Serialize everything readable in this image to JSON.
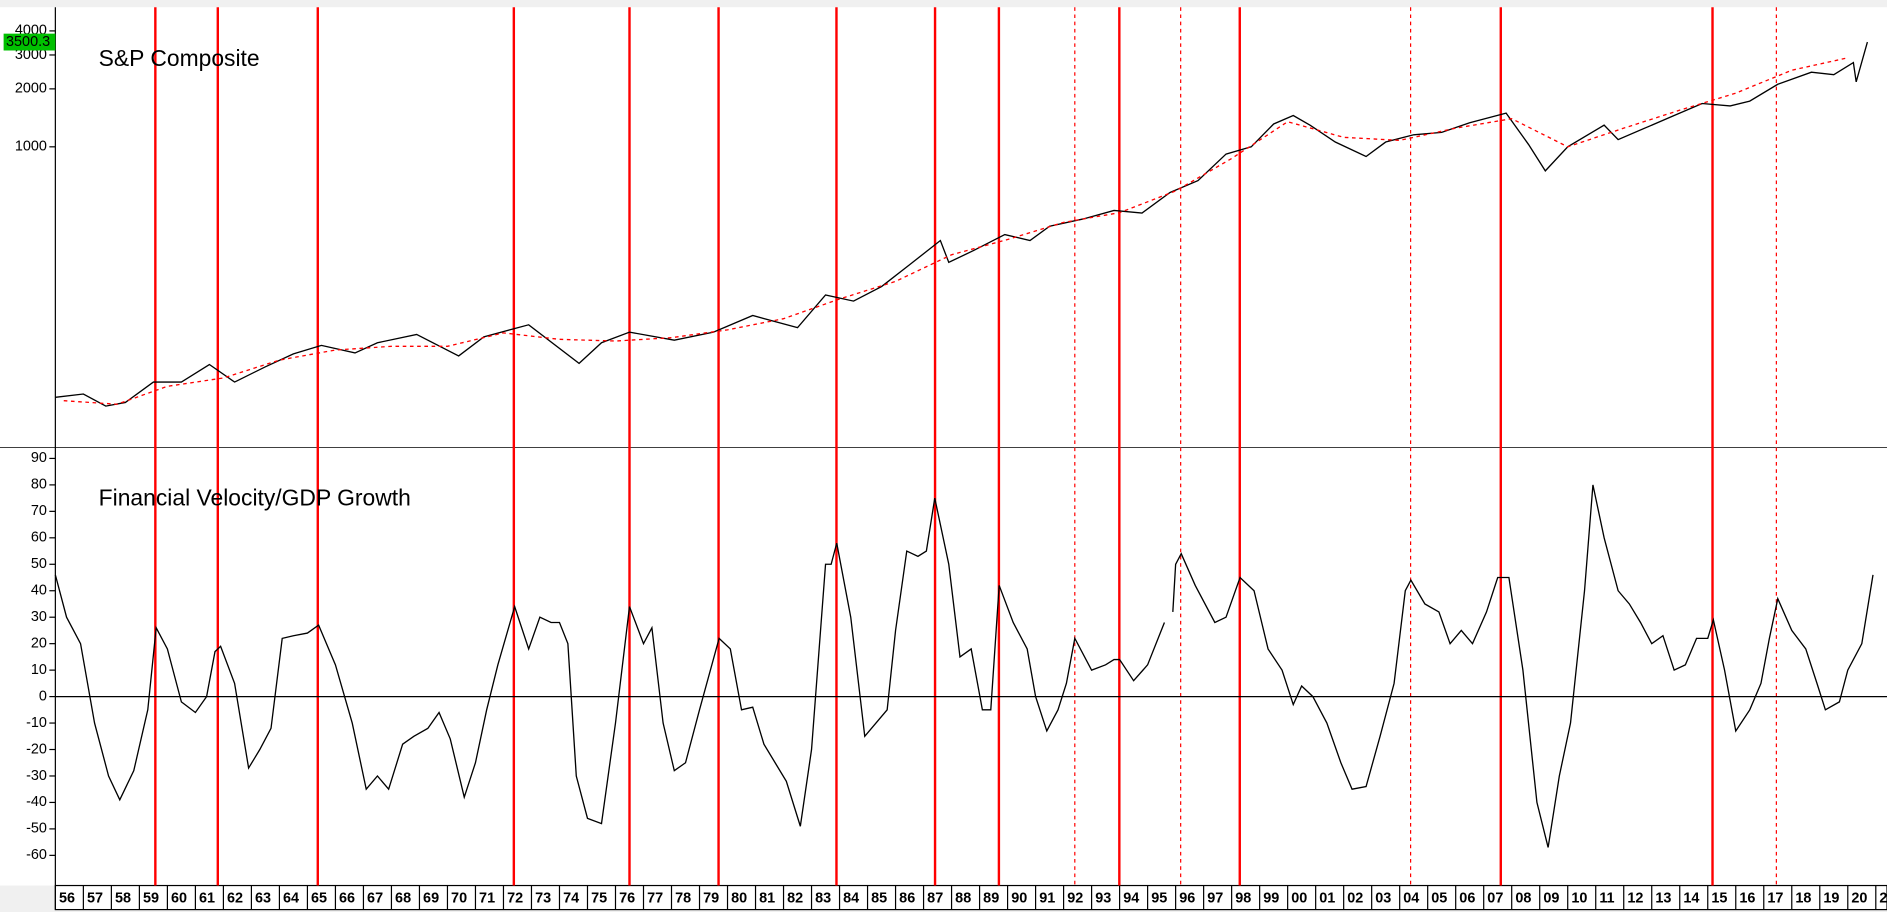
{
  "chart_data": [
    {
      "type": "line",
      "title": "S&P Composite",
      "log_scale": true,
      "last_value": 3500.3,
      "last_value_color": "#00c000",
      "xlim": [
        1956,
        2021.4
      ],
      "ylim": [
        27.4,
        5160
      ],
      "yticks": [
        1000,
        2000,
        3000,
        4000
      ],
      "vlines_color": "#ff0000",
      "vlines": [
        {
          "x": 1959.57,
          "dashed": false
        },
        {
          "x": 1961.8,
          "dashed": false
        },
        {
          "x": 1965.37,
          "dashed": false
        },
        {
          "x": 1972.37,
          "dashed": false
        },
        {
          "x": 1976.5,
          "dashed": false
        },
        {
          "x": 1979.68,
          "dashed": false
        },
        {
          "x": 1983.89,
          "dashed": false
        },
        {
          "x": 1987.41,
          "dashed": false
        },
        {
          "x": 1989.69,
          "dashed": false
        },
        {
          "x": 1992.4,
          "dashed": true
        },
        {
          "x": 1993.99,
          "dashed": false
        },
        {
          "x": 1996.18,
          "dashed": true
        },
        {
          "x": 1998.29,
          "dashed": false
        },
        {
          "x": 2004.39,
          "dashed": true
        },
        {
          "x": 2007.61,
          "dashed": false
        },
        {
          "x": 2015.17,
          "dashed": false
        },
        {
          "x": 2017.45,
          "dashed": true
        }
      ],
      "series": [
        {
          "color": "#000000",
          "dashed": false,
          "x": [
            1956.0,
            1957.0,
            1957.8,
            1958.5,
            1959.5,
            1960.5,
            1961.5,
            1962.4,
            1963.5,
            1964.5,
            1965.5,
            1966.7,
            1967.5,
            1968.9,
            1970.4,
            1971.3,
            1972.9,
            1974.7,
            1975.5,
            1976.5,
            1978.1,
            1979.5,
            1980.9,
            1982.5,
            1983.5,
            1984.5,
            1985.5,
            1986.5,
            1987.6,
            1987.9,
            1988.8,
            1989.9,
            1990.8,
            1991.5,
            1992.7,
            1993.8,
            1994.8,
            1995.8,
            1996.8,
            1997.8,
            1998.7,
            1999.5,
            2000.2,
            2000.8,
            2001.7,
            2002.8,
            2003.5,
            2004.5,
            2005.5,
            2006.5,
            2007.8,
            2008.6,
            2009.2,
            2010.0,
            2011.3,
            2011.8,
            2012.8,
            2013.8,
            2014.8,
            2015.8,
            2016.5,
            2017.5,
            2018.7,
            2019.5,
            2020.2,
            2020.3,
            2020.7
          ],
          "values": [
            50,
            52,
            45,
            47,
            60,
            60,
            74,
            60,
            72,
            84,
            93,
            85,
            96,
            106,
            82,
            103,
            119,
            75,
            96,
            109,
            99,
            109,
            133,
            115,
            170,
            158,
            188,
            244,
            326,
            251,
            290,
            350,
            326,
            387,
            422,
            467,
            453,
            579,
            668,
            917,
            1000,
            1314,
            1454,
            1296,
            1059,
            891,
            1059,
            1155,
            1189,
            1334,
            1496,
            1029,
            750,
            1000,
            1296,
            1090,
            1259,
            1454,
            1679,
            1631,
            1728,
            2113,
            2441,
            2371,
            2738,
            2175,
            3500
          ]
        },
        {
          "color": "#ff0000",
          "dashed": true,
          "x": [
            1956.3,
            1958.2,
            1960,
            1962,
            1964,
            1966,
            1968,
            1970,
            1972,
            1974,
            1976,
            1978,
            1980,
            1982,
            1984,
            1986,
            1988,
            1990,
            1992,
            1994,
            1996,
            1998,
            2000,
            2002,
            2004,
            2006,
            2008,
            2010,
            2012,
            2014,
            2016,
            2018,
            2020
          ],
          "values": [
            48,
            46,
            57,
            63,
            78,
            88,
            92,
            92,
            108,
            100,
            98,
            102,
            112,
            128,
            162,
            200,
            275,
            330,
            405,
            455,
            590,
            870,
            1350,
            1120,
            1080,
            1250,
            1400,
            1000,
            1250,
            1550,
            1900,
            2500,
            2900
          ]
        }
      ]
    },
    {
      "type": "line",
      "title": "Financial Velocity/GDP Growth",
      "hline": 0,
      "xlim": [
        1956,
        2021.4
      ],
      "ylim": [
        -71.4,
        94.1
      ],
      "yticks": [
        -60,
        -50,
        -40,
        -30,
        -20,
        -10,
        0,
        10,
        20,
        30,
        40,
        50,
        60,
        70,
        80,
        90
      ],
      "xticks": [
        {
          "value": 1956,
          "label": "56"
        },
        {
          "value": 1957,
          "label": "57"
        },
        {
          "value": 1958,
          "label": "58"
        },
        {
          "value": 1959,
          "label": "59"
        },
        {
          "value": 1960,
          "label": "60"
        },
        {
          "value": 1961,
          "label": "61"
        },
        {
          "value": 1962,
          "label": "62"
        },
        {
          "value": 1963,
          "label": "63"
        },
        {
          "value": 1964,
          "label": "64"
        },
        {
          "value": 1965,
          "label": "65"
        },
        {
          "value": 1966,
          "label": "66"
        },
        {
          "value": 1967,
          "label": "67"
        },
        {
          "value": 1968,
          "label": "68"
        },
        {
          "value": 1969,
          "label": "69"
        },
        {
          "value": 1970,
          "label": "70"
        },
        {
          "value": 1971,
          "label": "71"
        },
        {
          "value": 1972,
          "label": "72"
        },
        {
          "value": 1973,
          "label": "73"
        },
        {
          "value": 1974,
          "label": "74"
        },
        {
          "value": 1975,
          "label": "75"
        },
        {
          "value": 1976,
          "label": "76"
        },
        {
          "value": 1977,
          "label": "77"
        },
        {
          "value": 1978,
          "label": "78"
        },
        {
          "value": 1979,
          "label": "79"
        },
        {
          "value": 1980,
          "label": "80"
        },
        {
          "value": 1981,
          "label": "81"
        },
        {
          "value": 1982,
          "label": "82"
        },
        {
          "value": 1983,
          "label": "83"
        },
        {
          "value": 1984,
          "label": "84"
        },
        {
          "value": 1985,
          "label": "85"
        },
        {
          "value": 1986,
          "label": "86"
        },
        {
          "value": 1987,
          "label": "87"
        },
        {
          "value": 1988,
          "label": "88"
        },
        {
          "value": 1989,
          "label": "89"
        },
        {
          "value": 1990,
          "label": "90"
        },
        {
          "value": 1991,
          "label": "91"
        },
        {
          "value": 1992,
          "label": "92"
        },
        {
          "value": 1993,
          "label": "93"
        },
        {
          "value": 1994,
          "label": "94"
        },
        {
          "value": 1995,
          "label": "95"
        },
        {
          "value": 1996,
          "label": "96"
        },
        {
          "value": 1997,
          "label": "97"
        },
        {
          "value": 1998,
          "label": "98"
        },
        {
          "value": 1999,
          "label": "99"
        },
        {
          "value": 2000,
          "label": "00"
        },
        {
          "value": 2001,
          "label": "01"
        },
        {
          "value": 2002,
          "label": "02"
        },
        {
          "value": 2003,
          "label": "03"
        },
        {
          "value": 2004,
          "label": "04"
        },
        {
          "value": 2005,
          "label": "05"
        },
        {
          "value": 2006,
          "label": "06"
        },
        {
          "value": 2007,
          "label": "07"
        },
        {
          "value": 2008,
          "label": "08"
        },
        {
          "value": 2009,
          "label": "09"
        },
        {
          "value": 2010,
          "label": "10"
        },
        {
          "value": 2011,
          "label": "11"
        },
        {
          "value": 2012,
          "label": "12"
        },
        {
          "value": 2013,
          "label": "13"
        },
        {
          "value": 2014,
          "label": "14"
        },
        {
          "value": 2015,
          "label": "15"
        },
        {
          "value": 2016,
          "label": "16"
        },
        {
          "value": 2017,
          "label": "17"
        },
        {
          "value": 2018,
          "label": "18"
        },
        {
          "value": 2019,
          "label": "19"
        },
        {
          "value": 2020,
          "label": "20"
        },
        {
          "value": 2021,
          "label": "2"
        }
      ],
      "series": [
        {
          "color": "#000000",
          "dashed": false,
          "x": [
            1956.0,
            1956.4,
            1956.9,
            1957.4,
            1957.9,
            1958.3,
            1958.8,
            1959.3,
            1959.6,
            1960.0,
            1960.5,
            1961.0,
            1961.4,
            1961.7,
            1961.9,
            1962.4,
            1962.9,
            1963.3,
            1963.7,
            1964.1,
            1964.5,
            1965.0,
            1965.4,
            1966.0,
            1966.6,
            1967.1,
            1967.5,
            1967.9,
            1968.4,
            1968.8,
            1969.3,
            1969.7,
            1970.1,
            1970.6,
            1971.0,
            1971.4,
            1971.8,
            1972.4,
            1972.9,
            1973.3,
            1973.7,
            1974.0,
            1974.3,
            1974.6,
            1975.0,
            1975.5,
            1976.0,
            1976.5,
            1977.0,
            1977.3,
            1977.7,
            1978.1,
            1978.5,
            1979.0,
            1979.7,
            1980.1,
            1980.5,
            1980.9,
            1981.3,
            1981.7,
            1982.1,
            1982.6,
            1983.0,
            1983.5,
            1983.7,
            1983.9,
            1984.4,
            1984.9,
            1985.3,
            1985.7,
            1986.0,
            1986.4,
            1986.8,
            1987.1,
            1987.4,
            1987.9,
            1988.3,
            1988.7,
            1989.1,
            1989.4,
            1989.7,
            1990.2,
            1990.7,
            1991.0,
            1991.4,
            1991.8,
            1992.1,
            1992.4,
            1993.0,
            1993.5,
            1993.8,
            1994.0,
            1994.5,
            1995.0,
            1995.6,
            1995.7,
            1995.9,
            1996.0,
            1996.2,
            1996.7,
            1997.4,
            1997.8,
            1998.3,
            1998.8,
            1999.3,
            1999.8,
            2000.2,
            2000.5,
            2000.9,
            2001.4,
            2001.9,
            2002.3,
            2002.8,
            2003.3,
            2003.8,
            2004.2,
            2004.4,
            2004.9,
            2005.4,
            2005.8,
            2006.2,
            2006.6,
            2007.1,
            2007.5,
            2007.9,
            2008.4,
            2008.9,
            2009.3,
            2009.7,
            2010.1,
            2010.6,
            2010.9,
            2011.3,
            2011.8,
            2012.2,
            2012.6,
            2013.0,
            2013.4,
            2013.8,
            2014.2,
            2014.6,
            2015.0,
            2015.2,
            2015.6,
            2016.0,
            2016.5,
            2016.9,
            2017.2,
            2017.5,
            2018.0,
            2018.5,
            2018.9,
            2019.2,
            2019.7,
            2020.0,
            2020.5,
            2020.9
          ],
          "values": [
            46,
            30,
            20,
            -10,
            -30,
            -39,
            -28,
            -5,
            26,
            18,
            -2,
            -6,
            0,
            17,
            19,
            5,
            -27,
            -20,
            -12,
            22,
            23,
            24,
            27,
            12,
            -10,
            -35,
            -30,
            -35,
            -18,
            -15,
            -12,
            -6,
            -16,
            -38,
            -25,
            -5,
            12,
            34,
            18,
            30,
            28,
            28,
            20,
            -30,
            -46,
            -48,
            -10,
            34,
            20,
            26,
            -10,
            -28,
            -25,
            -5,
            22,
            18,
            -5,
            -4,
            -18,
            -25,
            -32,
            -49,
            -20,
            50,
            50,
            58,
            30,
            -15,
            -10,
            -5,
            25,
            55,
            53,
            55,
            75,
            50,
            15,
            18,
            -5,
            -5,
            42,
            28,
            18,
            0,
            -13,
            -5,
            5,
            22,
            10,
            12,
            14,
            14,
            6,
            12,
            28,
            null,
            32,
            50,
            54,
            42,
            28,
            30,
            45,
            40,
            18,
            10,
            -3,
            4,
            0,
            -10,
            -25,
            -35,
            -34,
            -15,
            5,
            40,
            44,
            35,
            32,
            20,
            25,
            20,
            32,
            45,
            45,
            10,
            -40,
            -57,
            -30,
            -10,
            40,
            80,
            60,
            40,
            35,
            28,
            20,
            23,
            10,
            12,
            22,
            22,
            29,
            10,
            -13,
            -5,
            5,
            22,
            37,
            25,
            18,
            5,
            -5,
            -2,
            10,
            20,
            46
          ]
        }
      ]
    }
  ]
}
